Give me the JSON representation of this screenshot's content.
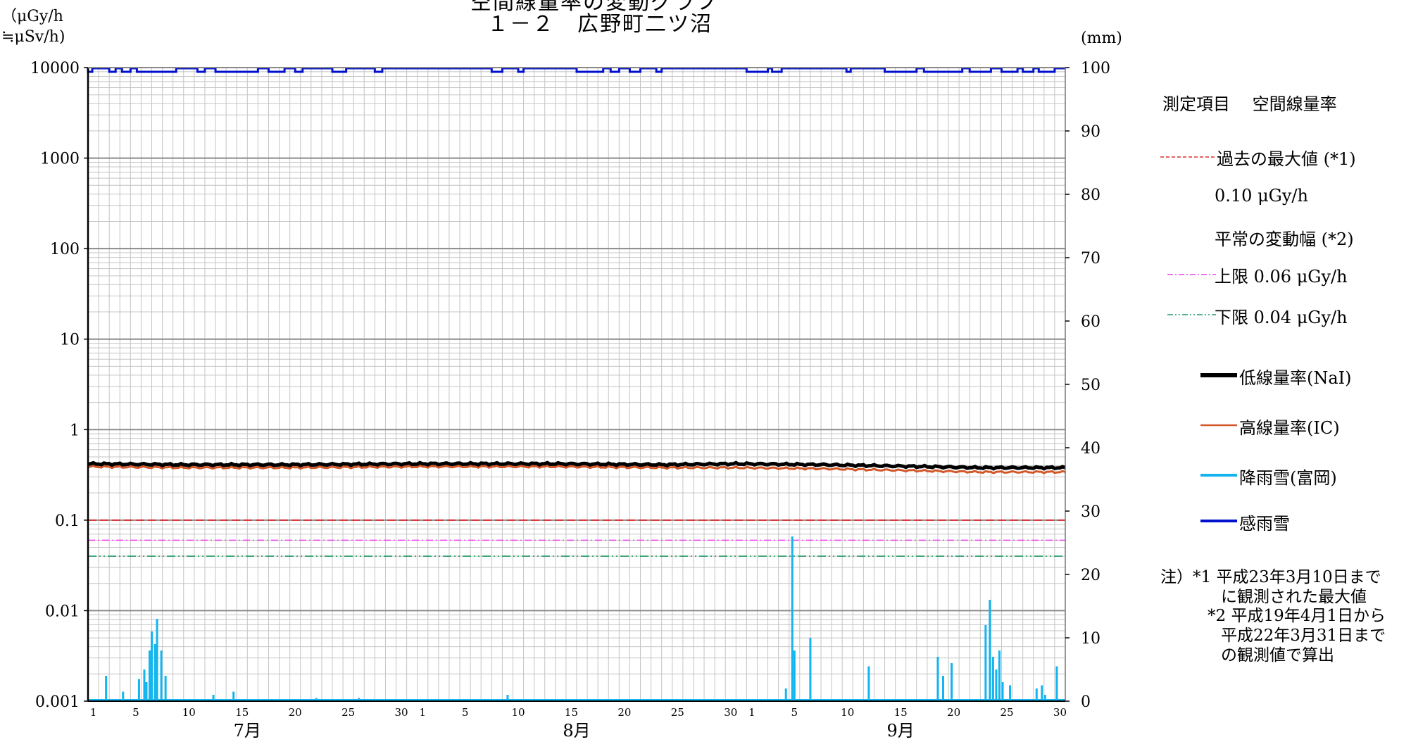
{
  "title_line1": "空間線量率の変動グラフ",
  "title_line2": "１－２　広野町二ツ沼",
  "left_unit_line1": "（μGy/h",
  "left_unit_line2": "≒μSv/h)",
  "right_unit": "(mm)",
  "legend": {
    "heading": "測定項目　 空間線量率",
    "past_max": "過去の最大値 (*1)",
    "past_max_value": "0.10 μGy/h",
    "normal_range": "平常の変動幅 (*2)",
    "upper": "上限 0.06 μGy/h",
    "lower": "下限 0.04 μGy/h",
    "nai": "低線量率(NaI)",
    "ic": "高線量率(IC)",
    "rain": "降雨雪(富岡)",
    "sense": "感雨雪",
    "colors": {
      "past_max": "#e03030",
      "upper": "#ee44ee",
      "lower": "#229966",
      "nai": "#000000",
      "ic": "#d2582a",
      "rain": "#14b4ee",
      "sense": "#0010cc"
    }
  },
  "notes": {
    "line1": "注）*1 平成23年3月10日まで",
    "line2": "に観測された最大値",
    "line3": "*2 平成19年4月1日から",
    "line4": "平成22年3月31日まで",
    "line5": "の観測値で算出"
  },
  "chart_data": {
    "type": "line",
    "title": "１－２　広野町二ツ沼",
    "y_left": {
      "scale": "log",
      "range": [
        0.001,
        10000
      ],
      "ticks": [
        "0.001",
        "0.01",
        "0.1",
        "1",
        "10",
        "100",
        "1000",
        "10000"
      ]
    },
    "y_right": {
      "scale": "linear",
      "range": [
        0,
        100
      ],
      "ticks": [
        "0",
        "10",
        "20",
        "30",
        "40",
        "50",
        "60",
        "70",
        "80",
        "90",
        "100"
      ]
    },
    "months": [
      "7月",
      "8月",
      "9月"
    ],
    "month_days": [
      31,
      31,
      30
    ],
    "day_ticks": [
      "1",
      "5",
      "10",
      "15",
      "20",
      "25",
      "30"
    ],
    "grid": true,
    "reference_lines": {
      "past_max": 0.1,
      "upper": 0.06,
      "lower": 0.04
    },
    "series": [
      {
        "name": "低線量率(NaI)",
        "axis": "left",
        "x_day": [
          1,
          10,
          20,
          32,
          45,
          55,
          62,
          70,
          75,
          80,
          85,
          92
        ],
        "values": [
          0.42,
          0.41,
          0.41,
          0.42,
          0.42,
          0.41,
          0.42,
          0.41,
          0.4,
          0.39,
          0.38,
          0.38
        ]
      },
      {
        "name": "高線量率(IC)",
        "axis": "left",
        "x_day": [
          1,
          10,
          20,
          32,
          45,
          55,
          62,
          70,
          75,
          80,
          85,
          92
        ],
        "values": [
          0.39,
          0.38,
          0.38,
          0.39,
          0.39,
          0.38,
          0.38,
          0.37,
          0.36,
          0.35,
          0.34,
          0.34
        ]
      },
      {
        "name": "降雨雪(富岡)",
        "axis": "right",
        "x_day": [
          2.2,
          3.8,
          5.3,
          5.8,
          6.0,
          6.3,
          6.5,
          6.8,
          7.0,
          7.4,
          7.8,
          12.3,
          14.2,
          22.0,
          26.0,
          40.0,
          66.2,
          66.8,
          67.0,
          68.5,
          74.0,
          80.5,
          81.0,
          81.8,
          85.0,
          85.4,
          85.7,
          86.0,
          86.3,
          86.6,
          87.3,
          89.8,
          90.3,
          90.6,
          91.7
        ],
        "values": [
          4,
          1.5,
          3.5,
          5,
          3,
          8,
          11,
          9,
          13,
          8,
          4,
          1,
          1.5,
          0.5,
          0.5,
          1,
          2,
          26,
          8,
          10,
          5.5,
          7,
          4,
          6,
          12,
          16,
          7,
          5,
          8,
          3,
          2.5,
          2,
          2.5,
          1,
          5.5
        ]
      },
      {
        "name": "感雨雪",
        "axis": "right",
        "on_periods": [
          [
            1.0,
            1.4
          ],
          [
            3.0,
            3.6
          ],
          [
            4.2,
            5.0
          ],
          [
            5.6,
            9.3
          ],
          [
            11.3,
            12.0
          ],
          [
            13.0,
            17.0
          ],
          [
            18.0,
            19.5
          ],
          [
            20.5,
            21.2
          ],
          [
            24.0,
            25.3
          ],
          [
            28.0,
            28.7
          ],
          [
            39.0,
            40.0
          ],
          [
            41.5,
            42.0
          ],
          [
            47.0,
            49.5
          ],
          [
            50.2,
            51.0
          ],
          [
            52.0,
            53.0
          ],
          [
            54.5,
            55.0
          ],
          [
            63.0,
            65.0
          ],
          [
            65.4,
            66.3
          ],
          [
            72.4,
            72.8
          ],
          [
            76.0,
            79.0
          ],
          [
            79.7,
            83.3
          ],
          [
            84.0,
            86.0
          ],
          [
            87.0,
            88.5
          ],
          [
            89.0,
            90.0
          ],
          [
            90.5,
            92.0
          ]
        ]
      }
    ]
  }
}
